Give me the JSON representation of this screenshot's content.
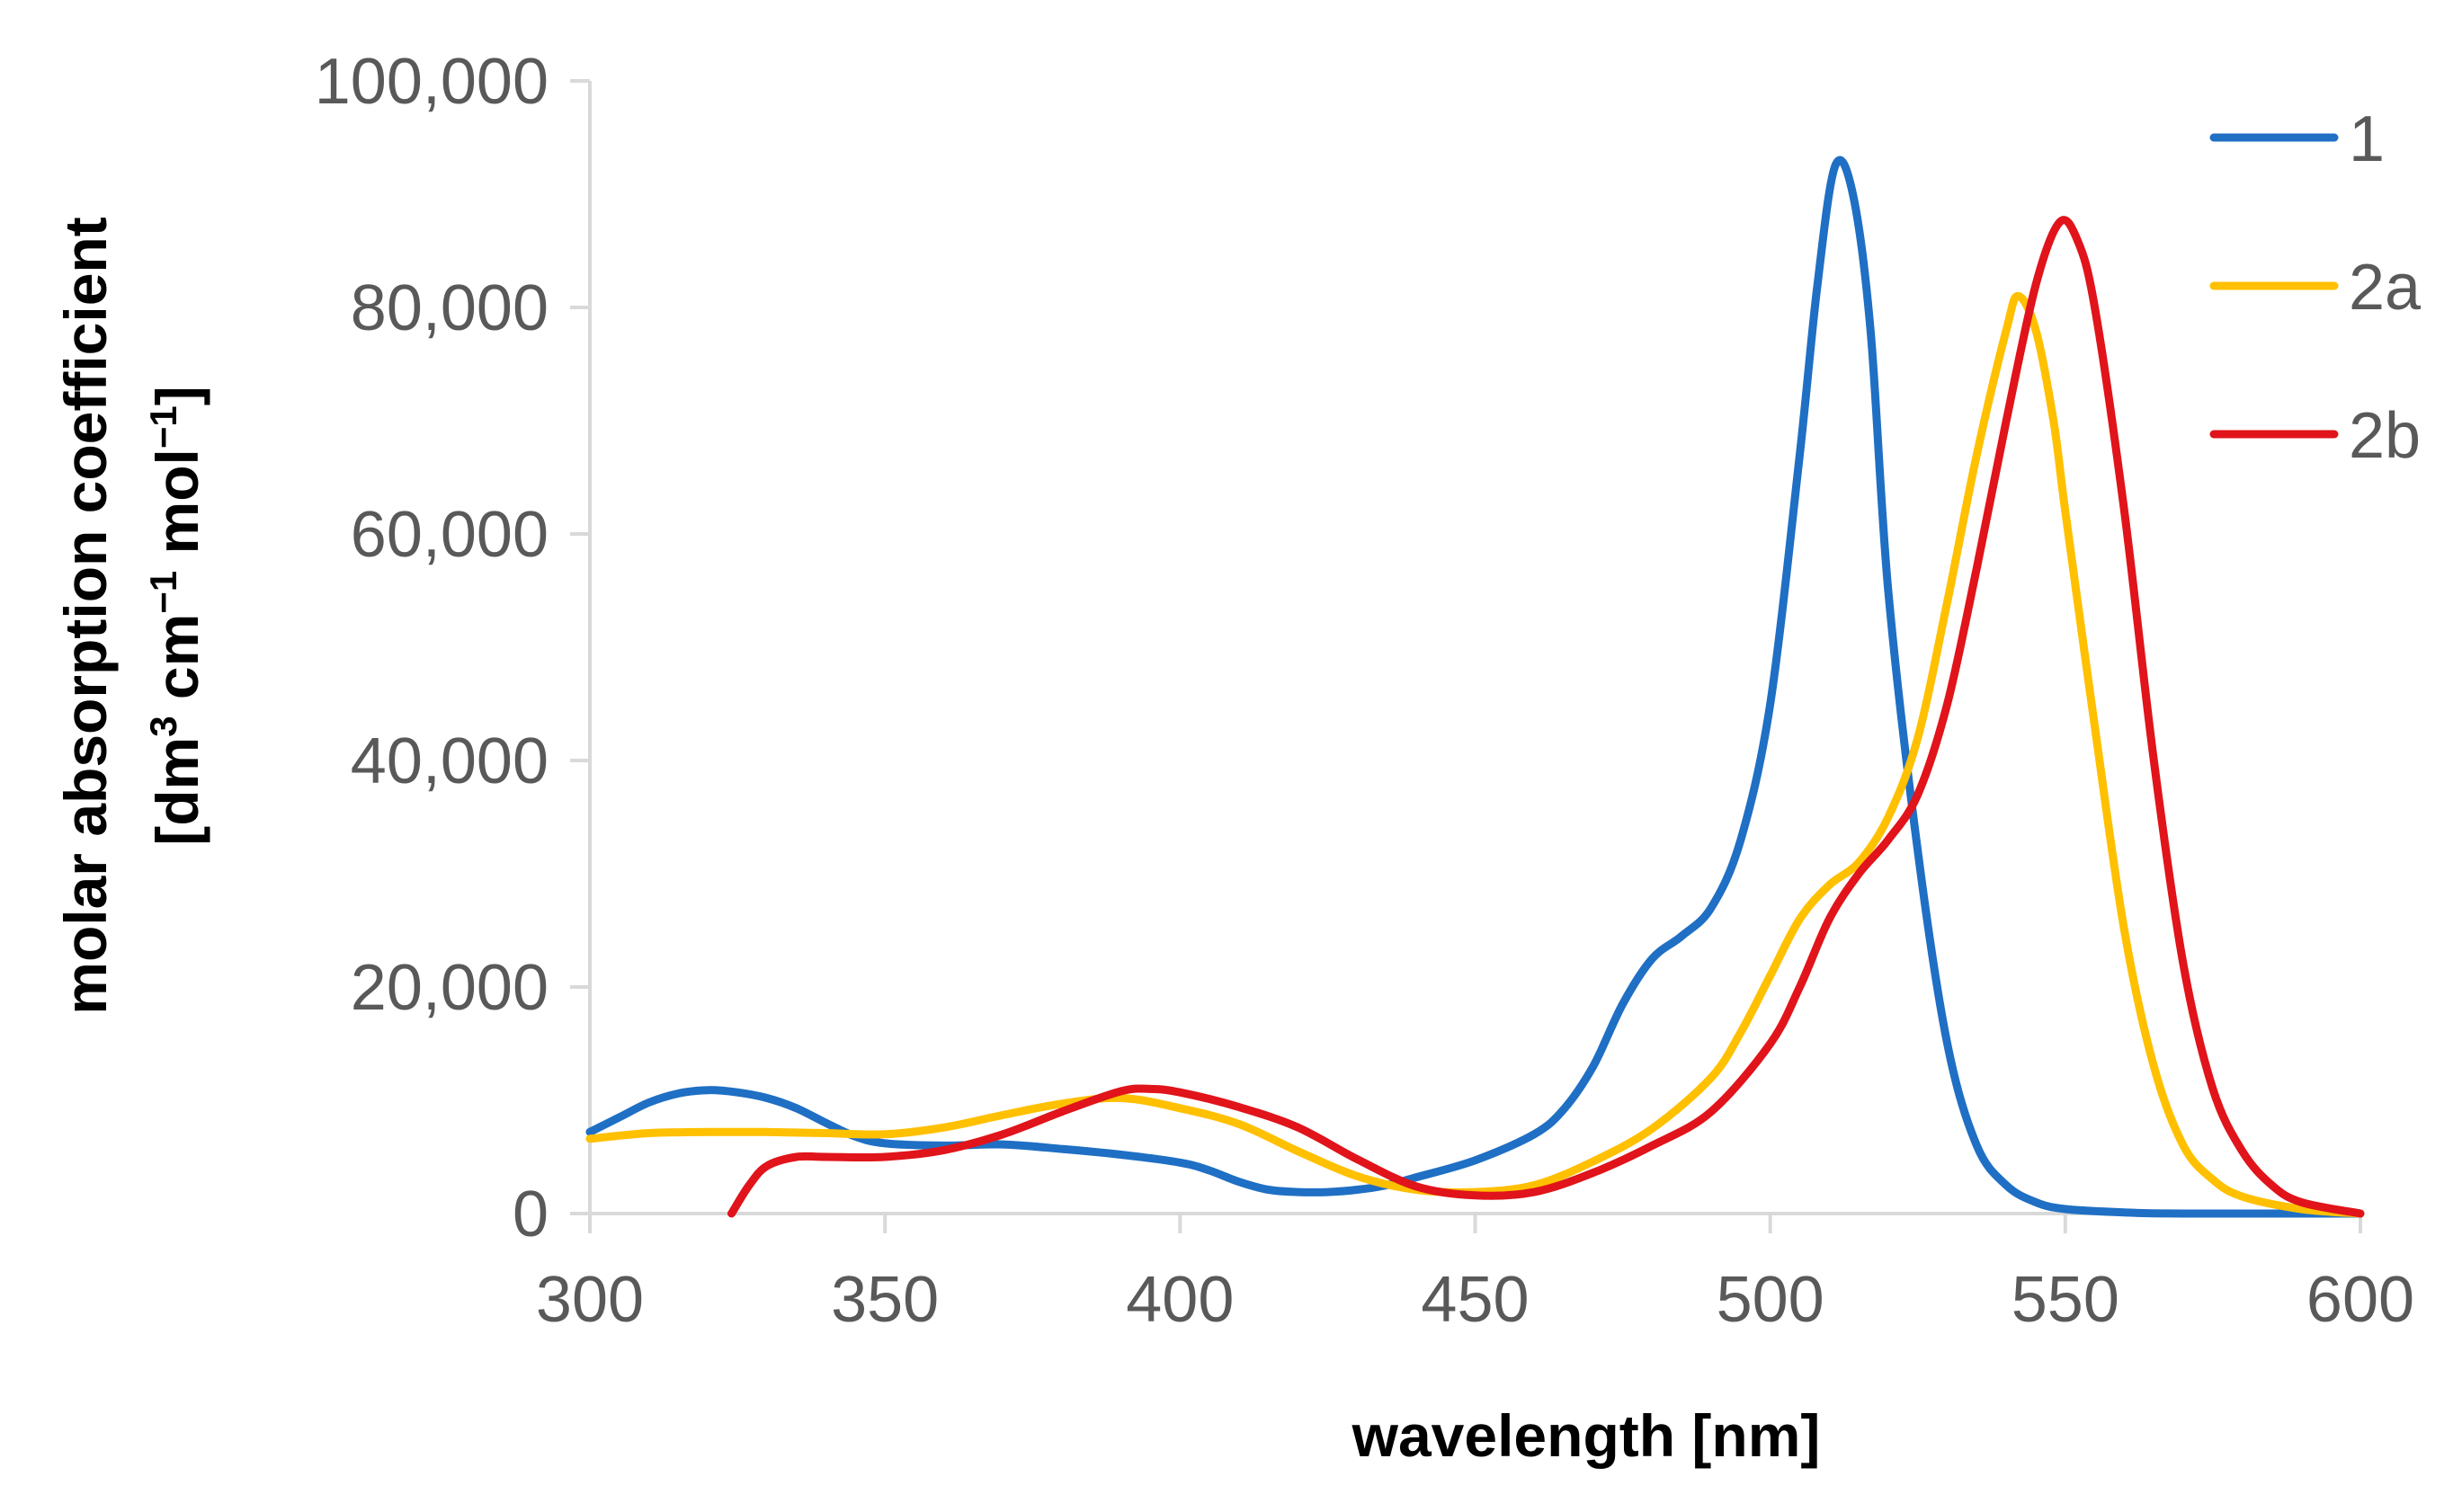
{
  "chart_data": {
    "type": "line",
    "title": "",
    "xlabel": "wavelength [nm]",
    "ylabel": {
      "line1": "molar absorption coefficient",
      "line2": {
        "open": "[dm",
        "sup1": "3",
        "mid1": " cm",
        "sup2": "−1",
        "mid2": " mol",
        "sup3": "−1",
        "close": "]"
      }
    },
    "xlim": [
      300,
      600
    ],
    "ylim": [
      0,
      100000
    ],
    "x_ticks": [
      300,
      350,
      400,
      450,
      500,
      550,
      600
    ],
    "x_tick_labels": [
      "300",
      "350",
      "400",
      "450",
      "500",
      "550",
      "600"
    ],
    "y_ticks": [
      0,
      20000,
      40000,
      60000,
      80000,
      100000
    ],
    "y_tick_labels": [
      "0",
      "20,000",
      "40,000",
      "60,000",
      "80,000",
      "100,000"
    ],
    "grid": false,
    "legend_position": "top-right",
    "series": [
      {
        "name": "1",
        "color": "#1f6fc4",
        "points": [
          [
            300,
            7200
          ],
          [
            305,
            8500
          ],
          [
            310,
            9800
          ],
          [
            315,
            10600
          ],
          [
            320,
            10900
          ],
          [
            325,
            10700
          ],
          [
            330,
            10200
          ],
          [
            335,
            9300
          ],
          [
            340,
            8000
          ],
          [
            345,
            6800
          ],
          [
            350,
            6200
          ],
          [
            360,
            6000
          ],
          [
            370,
            6100
          ],
          [
            380,
            5700
          ],
          [
            390,
            5200
          ],
          [
            400,
            4500
          ],
          [
            405,
            3800
          ],
          [
            410,
            2800
          ],
          [
            415,
            2100
          ],
          [
            420,
            1900
          ],
          [
            425,
            1900
          ],
          [
            430,
            2100
          ],
          [
            435,
            2500
          ],
          [
            440,
            3200
          ],
          [
            450,
            4700
          ],
          [
            460,
            7000
          ],
          [
            465,
            9200
          ],
          [
            470,
            13000
          ],
          [
            475,
            18500
          ],
          [
            480,
            22500
          ],
          [
            485,
            24500
          ],
          [
            490,
            27000
          ],
          [
            495,
            33000
          ],
          [
            500,
            45000
          ],
          [
            505,
            67000
          ],
          [
            508,
            82000
          ],
          [
            511,
            92500
          ],
          [
            514,
            90000
          ],
          [
            517,
            78000
          ],
          [
            520,
            55000
          ],
          [
            525,
            32000
          ],
          [
            530,
            15000
          ],
          [
            535,
            6000
          ],
          [
            540,
            2500
          ],
          [
            545,
            1000
          ],
          [
            550,
            400
          ],
          [
            560,
            100
          ],
          [
            570,
            0
          ],
          [
            600,
            0
          ]
        ]
      },
      {
        "name": "2a",
        "color": "#ffc000",
        "points": [
          [
            300,
            6600
          ],
          [
            310,
            7100
          ],
          [
            320,
            7200
          ],
          [
            330,
            7200
          ],
          [
            340,
            7100
          ],
          [
            350,
            7000
          ],
          [
            360,
            7600
          ],
          [
            370,
            8700
          ],
          [
            380,
            9700
          ],
          [
            390,
            10200
          ],
          [
            400,
            9300
          ],
          [
            410,
            7900
          ],
          [
            420,
            5500
          ],
          [
            430,
            3300
          ],
          [
            440,
            2100
          ],
          [
            450,
            1900
          ],
          [
            460,
            2500
          ],
          [
            470,
            4600
          ],
          [
            480,
            7500
          ],
          [
            490,
            12000
          ],
          [
            495,
            16000
          ],
          [
            500,
            21000
          ],
          [
            505,
            26000
          ],
          [
            510,
            29000
          ],
          [
            515,
            31000
          ],
          [
            520,
            35000
          ],
          [
            525,
            42000
          ],
          [
            530,
            54000
          ],
          [
            535,
            67000
          ],
          [
            540,
            78000
          ],
          [
            542,
            81000
          ],
          [
            545,
            78000
          ],
          [
            548,
            70000
          ],
          [
            550,
            62000
          ],
          [
            555,
            43000
          ],
          [
            560,
            25000
          ],
          [
            565,
            13000
          ],
          [
            570,
            6000
          ],
          [
            575,
            3000
          ],
          [
            580,
            1500
          ],
          [
            590,
            400
          ],
          [
            600,
            0
          ]
        ]
      },
      {
        "name": "2b",
        "color": "#e0141a",
        "points": [
          [
            324,
            0
          ],
          [
            327,
            2500
          ],
          [
            330,
            4200
          ],
          [
            335,
            5000
          ],
          [
            340,
            5000
          ],
          [
            350,
            5000
          ],
          [
            360,
            5600
          ],
          [
            370,
            7000
          ],
          [
            380,
            9000
          ],
          [
            390,
            10800
          ],
          [
            395,
            11000
          ],
          [
            400,
            10700
          ],
          [
            410,
            9400
          ],
          [
            420,
            7600
          ],
          [
            430,
            4800
          ],
          [
            440,
            2400
          ],
          [
            450,
            1600
          ],
          [
            460,
            1900
          ],
          [
            470,
            3600
          ],
          [
            480,
            6000
          ],
          [
            490,
            9000
          ],
          [
            500,
            15000
          ],
          [
            505,
            20000
          ],
          [
            510,
            26000
          ],
          [
            515,
            30000
          ],
          [
            520,
            33000
          ],
          [
            525,
            37000
          ],
          [
            530,
            45000
          ],
          [
            535,
            57000
          ],
          [
            540,
            70000
          ],
          [
            545,
            82000
          ],
          [
            549,
            87500
          ],
          [
            552,
            86000
          ],
          [
            555,
            80000
          ],
          [
            560,
            62000
          ],
          [
            565,
            40000
          ],
          [
            570,
            22000
          ],
          [
            575,
            11000
          ],
          [
            580,
            5500
          ],
          [
            585,
            2500
          ],
          [
            590,
            1000
          ],
          [
            600,
            0
          ]
        ]
      }
    ]
  }
}
